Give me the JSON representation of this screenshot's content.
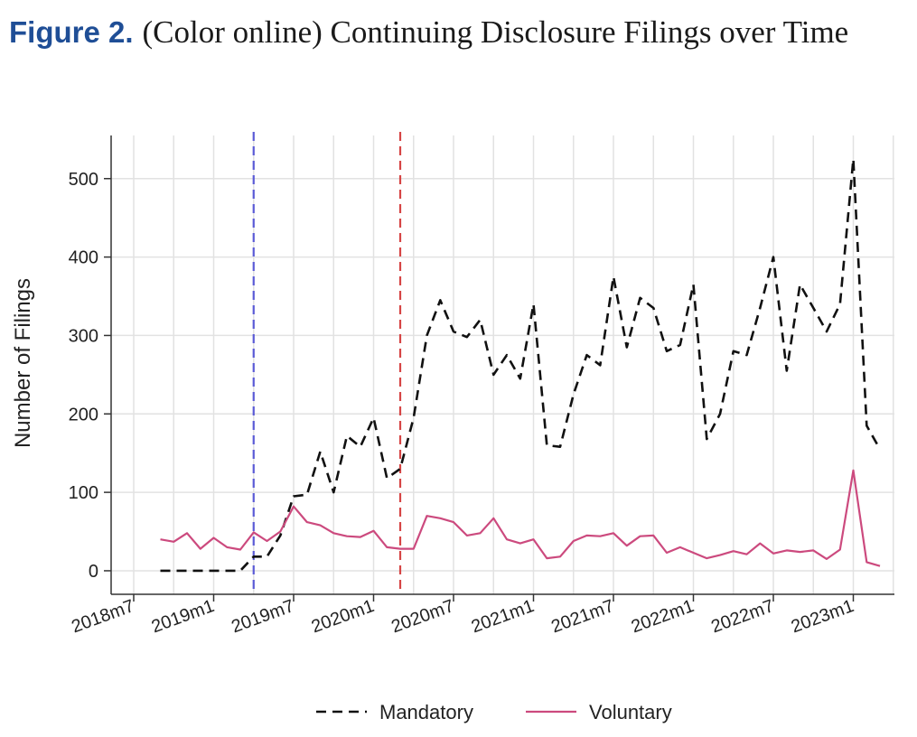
{
  "caption": {
    "label": "Figure 2.",
    "text": "(Color online) Continuing Disclosure Filings over Time"
  },
  "chart_data": {
    "type": "line",
    "title": "",
    "xlabel": "",
    "ylabel": "Number of Filings",
    "x_tick_labels": [
      "2018m7",
      "2019m1",
      "2019m7",
      "2020m1",
      "2020m7",
      "2021m1",
      "2021m7",
      "2022m1",
      "2022m7",
      "2023m1"
    ],
    "y_ticks": [
      0,
      100,
      200,
      300,
      400,
      500
    ],
    "ylim": [
      -30,
      555
    ],
    "x_start_month": "2018m9",
    "vertical_lines": [
      {
        "x": "2019m4",
        "style": "dashed",
        "color": "#5b5bd6"
      },
      {
        "x": "2020m3",
        "style": "dashed",
        "color": "#d64545"
      }
    ],
    "grid": true,
    "legend_position": "bottom",
    "series": [
      {
        "name": "Mandatory",
        "style": "dashed",
        "color": "#111111",
        "values": [
          0,
          0,
          0,
          0,
          0,
          0,
          0,
          18,
          18,
          45,
          95,
          97,
          152,
          100,
          172,
          158,
          195,
          118,
          130,
          195,
          300,
          345,
          305,
          298,
          320,
          250,
          275,
          245,
          340,
          160,
          158,
          225,
          275,
          262,
          375,
          285,
          348,
          335,
          280,
          288,
          365,
          168,
          200,
          280,
          275,
          335,
          400,
          255,
          365,
          335,
          305,
          340,
          525,
          185,
          155
        ]
      },
      {
        "name": "Voluntary",
        "style": "solid",
        "color": "#cc4a7e",
        "values": [
          40,
          37,
          48,
          28,
          42,
          30,
          27,
          49,
          38,
          50,
          82,
          62,
          58,
          48,
          44,
          43,
          51,
          30,
          28,
          28,
          70,
          67,
          62,
          45,
          48,
          67,
          40,
          35,
          40,
          16,
          18,
          38,
          45,
          44,
          48,
          32,
          44,
          45,
          23,
          30,
          23,
          16,
          20,
          25,
          21,
          35,
          22,
          26,
          24,
          26,
          15,
          27,
          128,
          11,
          6
        ]
      }
    ]
  }
}
